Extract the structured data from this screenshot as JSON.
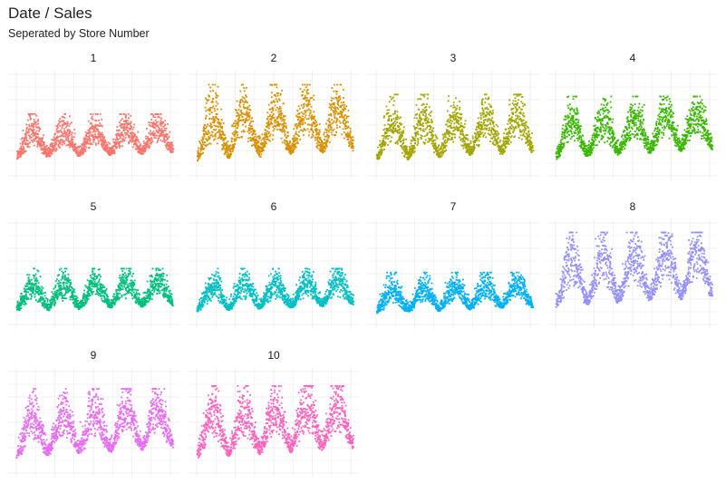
{
  "chart_data": {
    "type": "scatter",
    "title": "Date / Sales",
    "subtitle": "Seperated by Store Number",
    "facet_layout": "4 columns, 3 rows, free y axes hidden, x axes hidden",
    "grid": true,
    "legend": "none",
    "description_of_values": "Daily sales per store; each facet shows an upward trend with strong yearly seasonality (5 yearly peaks).",
    "facets": [
      {
        "name": "1",
        "color": "#F8766D",
        "base": 0.16,
        "season_amp": 0.18,
        "noise": 0.08,
        "trend": 0.06,
        "peak": 0.62
      },
      {
        "name": "2",
        "color": "#D89000",
        "base": 0.14,
        "season_amp": 0.34,
        "noise": 0.12,
        "trend": 0.1,
        "peak": 0.92
      },
      {
        "name": "3",
        "color": "#A3A500",
        "base": 0.14,
        "season_amp": 0.28,
        "noise": 0.1,
        "trend": 0.08,
        "peak": 0.82
      },
      {
        "name": "4",
        "color": "#39B600",
        "base": 0.16,
        "season_amp": 0.26,
        "noise": 0.1,
        "trend": 0.1,
        "peak": 0.8
      },
      {
        "name": "5",
        "color": "#00BF7D",
        "base": 0.12,
        "season_amp": 0.18,
        "noise": 0.07,
        "trend": 0.06,
        "peak": 0.56
      },
      {
        "name": "6",
        "color": "#00BFC4",
        "base": 0.12,
        "season_amp": 0.18,
        "noise": 0.07,
        "trend": 0.06,
        "peak": 0.56
      },
      {
        "name": "7",
        "color": "#00B0F6",
        "base": 0.1,
        "season_amp": 0.16,
        "noise": 0.07,
        "trend": 0.06,
        "peak": 0.52
      },
      {
        "name": "8",
        "color": "#9590FF",
        "base": 0.16,
        "season_amp": 0.36,
        "noise": 0.12,
        "trend": 0.1,
        "peak": 0.93
      },
      {
        "name": "9",
        "color": "#E76BF3",
        "base": 0.14,
        "season_amp": 0.3,
        "noise": 0.11,
        "trend": 0.1,
        "peak": 0.85
      },
      {
        "name": "10",
        "color": "#FF62BC",
        "base": 0.14,
        "season_amp": 0.32,
        "noise": 0.12,
        "trend": 0.1,
        "peak": 0.88
      }
    ]
  }
}
